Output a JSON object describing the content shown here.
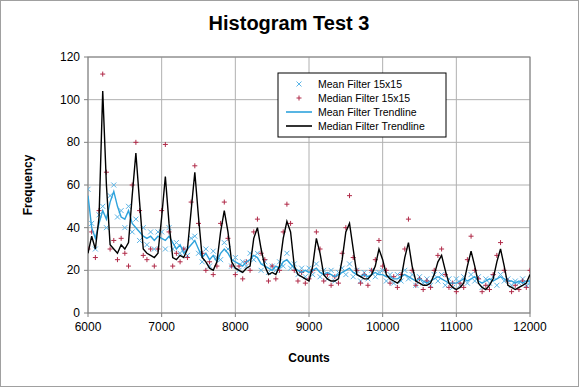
{
  "chart_data": {
    "type": "line",
    "title": "Histogram Test 3",
    "x_label": "Counts",
    "y_label": "Frequency",
    "xlim": [
      6000,
      12000
    ],
    "ylim": [
      0,
      120
    ],
    "xticks": [
      6000,
      7000,
      8000,
      9000,
      10000,
      11000,
      12000
    ],
    "yticks": [
      0,
      20,
      40,
      60,
      80,
      100,
      120
    ],
    "grid": true,
    "legend": "top",
    "x": [
      6000,
      6050,
      6100,
      6150,
      6200,
      6250,
      6300,
      6350,
      6400,
      6450,
      6500,
      6550,
      6600,
      6650,
      6700,
      6750,
      6800,
      6850,
      6900,
      6950,
      7000,
      7050,
      7100,
      7150,
      7200,
      7250,
      7300,
      7350,
      7400,
      7450,
      7500,
      7550,
      7600,
      7650,
      7700,
      7750,
      7800,
      7850,
      7900,
      7950,
      8000,
      8050,
      8100,
      8150,
      8200,
      8250,
      8300,
      8350,
      8400,
      8450,
      8500,
      8550,
      8600,
      8650,
      8700,
      8750,
      8800,
      8850,
      8900,
      8950,
      9000,
      9050,
      9100,
      9150,
      9200,
      9250,
      9300,
      9350,
      9400,
      9450,
      9500,
      9550,
      9600,
      9650,
      9700,
      9750,
      9800,
      9850,
      9900,
      9950,
      10000,
      10050,
      10100,
      10150,
      10200,
      10250,
      10300,
      10350,
      10400,
      10450,
      10500,
      10550,
      10600,
      10650,
      10700,
      10750,
      10800,
      10850,
      10900,
      10950,
      11000,
      11050,
      11100,
      11150,
      11200,
      11250,
      11300,
      11350,
      11400,
      11450,
      11500,
      11550,
      11600,
      11650,
      11700,
      11750,
      11800,
      11850,
      11900,
      11950,
      12000
    ],
    "series": [
      {
        "name": "Mean Filter 15x15",
        "type": "scatter",
        "marker": "x",
        "color": "#5ab4e6",
        "values": [
          58,
          42,
          30,
          46,
          50,
          40,
          55,
          60,
          45,
          48,
          40,
          50,
          38,
          44,
          34,
          40,
          32,
          38,
          30,
          38,
          38,
          30,
          40,
          30,
          33,
          28,
          30,
          27,
          35,
          36,
          28,
          24,
          30,
          22,
          29,
          26,
          25,
          33,
          30,
          22,
          26,
          20,
          24,
          22,
          28,
          25,
          28,
          20,
          24,
          19,
          22,
          20,
          24,
          22,
          28,
          21,
          23,
          18,
          21,
          17,
          21,
          18,
          23,
          17,
          20,
          16,
          20,
          15,
          19,
          21,
          18,
          23,
          17,
          20,
          15,
          19,
          16,
          20,
          17,
          19,
          20,
          15,
          18,
          14,
          18,
          15,
          20,
          16,
          18,
          13,
          17,
          14,
          16,
          13,
          18,
          15,
          18,
          13,
          16,
          12,
          16,
          13,
          17,
          14,
          18,
          15,
          17,
          12,
          16,
          14,
          17,
          13,
          18,
          15,
          16,
          13,
          15,
          14,
          16,
          13,
          14
        ]
      },
      {
        "name": "Median Filter 15x15",
        "type": "scatter",
        "marker": "plus",
        "color": "#b02a48",
        "values": [
          30,
          38,
          26,
          48,
          112,
          66,
          30,
          34,
          25,
          35,
          28,
          22,
          60,
          80,
          48,
          27,
          25,
          30,
          22,
          30,
          48,
          79,
          38,
          22,
          28,
          24,
          30,
          26,
          52,
          69,
          42,
          28,
          20,
          24,
          18,
          22,
          42,
          52,
          35,
          22,
          18,
          22,
          16,
          24,
          20,
          38,
          44,
          28,
          25,
          15,
          22,
          16,
          20,
          38,
          51,
          42,
          20,
          15,
          19,
          14,
          16,
          20,
          38,
          30,
          15,
          18,
          13,
          17,
          14,
          28,
          40,
          55,
          26,
          20,
          14,
          18,
          13,
          20,
          25,
          34,
          22,
          20,
          14,
          17,
          12,
          18,
          30,
          44,
          20,
          13,
          16,
          11,
          15,
          12,
          20,
          27,
          30,
          18,
          12,
          14,
          10,
          14,
          12,
          25,
          36,
          20,
          16,
          10,
          13,
          11,
          18,
          27,
          33,
          20,
          15,
          10,
          13,
          11,
          15,
          12,
          20
        ]
      },
      {
        "name": "Mean Filter Trendline",
        "type": "line",
        "line_style": "solid",
        "color": "#2fa3dc",
        "values": [
          55,
          40,
          35,
          42,
          48,
          44,
          52,
          57,
          50,
          45,
          44,
          48,
          42,
          40,
          38,
          36,
          35,
          36,
          34,
          36,
          35,
          34,
          36,
          33,
          30,
          32,
          28,
          30,
          32,
          34,
          30,
          26,
          28,
          25,
          27,
          24,
          28,
          30,
          28,
          25,
          24,
          23,
          22,
          24,
          25,
          27,
          26,
          23,
          22,
          21,
          20,
          22,
          21,
          24,
          25,
          23,
          21,
          20,
          19,
          20,
          19,
          20,
          21,
          19,
          18,
          19,
          18,
          17,
          18,
          19,
          20,
          21,
          19,
          18,
          17,
          18,
          17,
          18,
          19,
          18,
          18,
          17,
          17,
          16,
          16,
          17,
          18,
          17,
          16,
          15,
          16,
          15,
          14,
          15,
          16,
          17,
          16,
          15,
          14,
          14,
          14,
          15,
          16,
          15,
          16,
          17,
          15,
          14,
          15,
          16,
          15,
          16,
          17,
          16,
          15,
          15,
          14,
          15,
          14,
          15,
          15
        ]
      },
      {
        "name": "Median Filter Trendline",
        "type": "line",
        "line_style": "solid",
        "color": "#000000",
        "values": [
          28,
          36,
          30,
          45,
          104,
          60,
          32,
          30,
          28,
          32,
          30,
          33,
          55,
          75,
          52,
          30,
          28,
          27,
          26,
          28,
          45,
          64,
          42,
          26,
          25,
          27,
          26,
          30,
          48,
          66,
          45,
          26,
          24,
          21,
          20,
          24,
          38,
          48,
          38,
          24,
          21,
          20,
          19,
          21,
          22,
          35,
          40,
          30,
          22,
          18,
          19,
          18,
          22,
          35,
          43,
          38,
          22,
          18,
          17,
          16,
          15,
          22,
          35,
          28,
          18,
          16,
          15,
          15,
          16,
          25,
          38,
          42,
          30,
          18,
          17,
          16,
          16,
          18,
          22,
          30,
          25,
          18,
          16,
          15,
          14,
          16,
          26,
          33,
          22,
          15,
          14,
          13,
          13,
          14,
          18,
          24,
          27,
          20,
          14,
          12,
          11,
          12,
          14,
          22,
          29,
          22,
          14,
          12,
          11,
          13,
          16,
          24,
          30,
          22,
          13,
          12,
          11,
          12,
          13,
          14,
          18
        ]
      }
    ]
  }
}
